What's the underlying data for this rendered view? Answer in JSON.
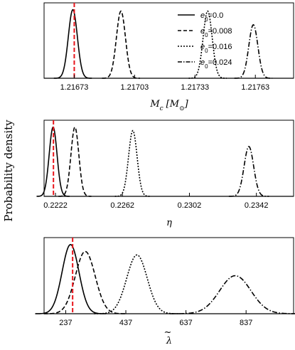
{
  "figure": {
    "ylabel": "Probability density",
    "line_color": "#000000",
    "marker_color": "#e8141b"
  },
  "chart_data": [
    {
      "type": "line",
      "xlabel": "Mc [M⊙]",
      "xlabel_main": "M",
      "xlabel_sub": "c",
      "xlabel_unit": "[M",
      "xlabel_unit_sub": "⊙",
      "xlabel_unit_close": "]",
      "xlim": [
        1.21658,
        1.21782
      ],
      "ylim": [
        0,
        1.1
      ],
      "xticks": [
        1.21673,
        1.21703,
        1.21733,
        1.21763
      ],
      "xtick_labels": [
        "1.21673",
        "1.21703",
        "1.21733",
        "1.21763"
      ],
      "true_value": 1.21673,
      "legend": {
        "placement": "top-right",
        "entries": [
          {
            "label_main": "e",
            "label_sub": "0",
            "label_rest": "=0.0",
            "style": "solid"
          },
          {
            "label_main": "e",
            "label_sub": "0",
            "label_rest": "=0.008",
            "style": "dashed"
          },
          {
            "label_main": "e",
            "label_sub": "0",
            "label_rest": "=0.016",
            "style": "dotted"
          },
          {
            "label_main": "e",
            "label_sub": "0",
            "label_rest": "=0.024",
            "style": "dashdot"
          }
        ]
      },
      "series": [
        {
          "name": "e0=0.0",
          "style": "solid",
          "mean": 1.216723,
          "sigma": 2.25e-05,
          "peak": 1.0
        },
        {
          "name": "e0=0.008",
          "style": "dashed",
          "mean": 1.216962,
          "sigma": 2.25e-05,
          "peak": 0.98
        },
        {
          "name": "e0=0.016",
          "style": "dotted",
          "mean": 1.217393,
          "sigma": 2.25e-05,
          "peak": 0.98
        },
        {
          "name": "e0=0.024",
          "style": "dashdot",
          "mean": 1.21762,
          "sigma": 2.25e-05,
          "peak": 0.78
        }
      ]
    },
    {
      "type": "line",
      "xlabel": "η",
      "xlim": [
        0.22152,
        0.23642
      ],
      "ylim": [
        0,
        1.1
      ],
      "xticks": [
        0.2222,
        0.2262,
        0.2302,
        0.2342
      ],
      "xtick_labels": [
        "0.2222",
        "0.2262",
        "0.2302",
        "0.2342"
      ],
      "true_value": 0.22208,
      "series": [
        {
          "name": "e0=0.0",
          "style": "solid",
          "mean": 0.22206,
          "sigma": 0.000235,
          "peak": 1.0
        },
        {
          "name": "e0=0.008",
          "style": "dashed",
          "mean": 0.22336,
          "sigma": 0.000235,
          "peak": 1.0
        },
        {
          "name": "e0=0.016",
          "style": "dotted",
          "mean": 0.22682,
          "sigma": 0.000255,
          "peak": 0.95
        },
        {
          "name": "e0=0.024",
          "style": "dashdot",
          "mean": 0.23375,
          "sigma": 0.000285,
          "peak": 0.72
        }
      ]
    },
    {
      "type": "line",
      "xlabel": "λ̃",
      "xlabel_main": "λ",
      "xlabel_accent": "~",
      "xlim": [
        165,
        995
      ],
      "ylim": [
        0,
        1.1
      ],
      "xticks": [
        237,
        437,
        637,
        837
      ],
      "xtick_labels": [
        "237",
        "437",
        "637",
        "837"
      ],
      "true_value": 260,
      "series": [
        {
          "name": "e0=0.0",
          "style": "solid",
          "mean": 253,
          "sigma": 28,
          "peak": 1.0
        },
        {
          "name": "e0=0.008",
          "style": "dashed",
          "mean": 302,
          "sigma": 33,
          "peak": 0.9
        },
        {
          "name": "e0=0.016",
          "style": "dotted",
          "mean": 474,
          "sigma": 34,
          "peak": 0.85
        },
        {
          "name": "e0=0.024",
          "style": "dashdot",
          "mean": 801,
          "sigma": 52,
          "peak": 0.55
        }
      ]
    }
  ]
}
